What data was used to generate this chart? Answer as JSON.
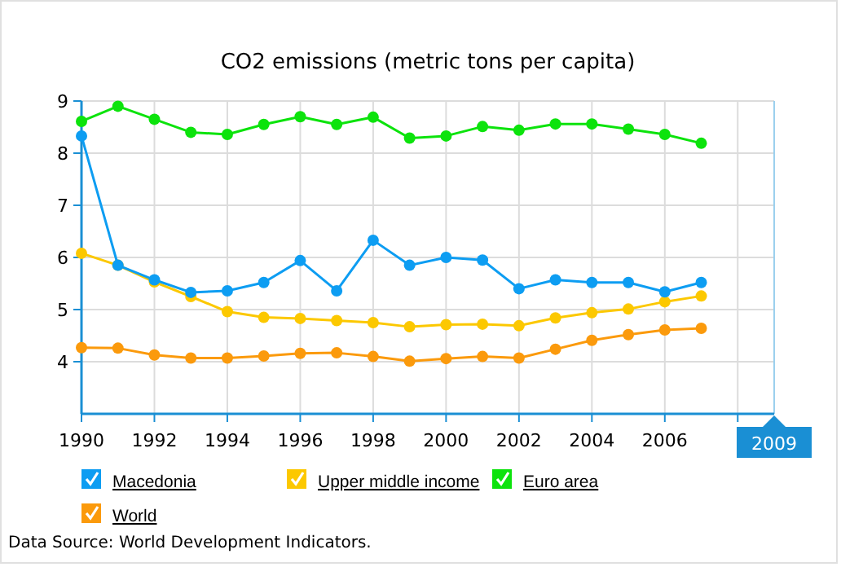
{
  "chart_data": {
    "type": "line",
    "title": "CO2 emissions (metric tons per capita)",
    "x": [
      1990,
      1991,
      1992,
      1993,
      1994,
      1995,
      1996,
      1997,
      1998,
      1999,
      2000,
      2001,
      2002,
      2003,
      2004,
      2005,
      2006,
      2007
    ],
    "series": [
      {
        "name": "Macedonia",
        "color": "#0d9df2",
        "values": [
          8.33,
          5.85,
          5.57,
          5.33,
          5.36,
          5.52,
          5.94,
          5.36,
          6.33,
          5.85,
          6.0,
          5.95,
          5.4,
          5.57,
          5.52,
          5.52,
          5.34,
          5.52
        ]
      },
      {
        "name": "Upper middle income",
        "color": "#fcc800",
        "values": [
          6.08,
          5.85,
          5.53,
          5.25,
          4.96,
          4.85,
          4.83,
          4.79,
          4.75,
          4.67,
          4.71,
          4.72,
          4.69,
          4.84,
          4.94,
          5.01,
          5.15,
          5.26
        ]
      },
      {
        "name": "Euro area",
        "color": "#0ce30c",
        "values": [
          8.61,
          8.9,
          8.65,
          8.4,
          8.36,
          8.55,
          8.7,
          8.55,
          8.69,
          8.29,
          8.33,
          8.51,
          8.44,
          8.56,
          8.56,
          8.46,
          8.36,
          8.19
        ]
      },
      {
        "name": "World",
        "color": "#fb9a0c",
        "values": [
          4.27,
          4.26,
          4.13,
          4.07,
          4.07,
          4.11,
          4.16,
          4.17,
          4.1,
          4.01,
          4.06,
          4.1,
          4.07,
          4.24,
          4.41,
          4.52,
          4.61,
          4.64
        ]
      }
    ],
    "xlim": [
      1990,
      2009
    ],
    "xticks": [
      1990,
      1992,
      1994,
      1996,
      1998,
      2000,
      2002,
      2004,
      2006,
      {
        "value": 2008,
        "label": null
      }
    ],
    "ylim": [
      3,
      9
    ],
    "yticks": [
      4,
      5,
      6,
      7,
      8,
      9
    ],
    "grid": true,
    "legend": "bottom",
    "marker": "circle",
    "annotations": [
      "2009",
      "Data Source: World Development Indicators."
    ]
  }
}
